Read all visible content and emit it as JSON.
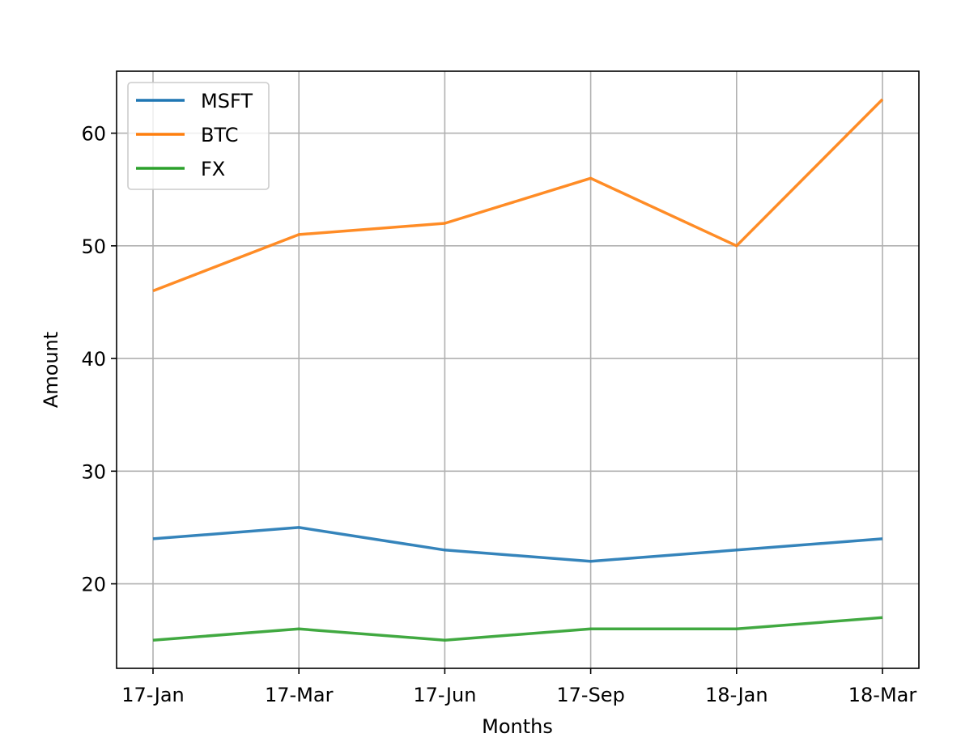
{
  "chart_data": {
    "type": "line",
    "title": "",
    "xlabel": "Months",
    "ylabel": "Amount",
    "categories": [
      "17-Jan",
      "17-Mar",
      "17-Jun",
      "17-Sep",
      "18-Jan",
      "18-Mar"
    ],
    "ylim": [
      12.5,
      65.5
    ],
    "yticks": [
      20,
      30,
      40,
      50,
      60
    ],
    "grid": true,
    "legend_position": "top-left",
    "series": [
      {
        "name": "MSFT",
        "color": "#1f77b4",
        "values": [
          24,
          25,
          23,
          22,
          23,
          24
        ]
      },
      {
        "name": "BTC",
        "color": "#ff7f0e",
        "values": [
          46,
          51,
          52,
          56,
          50,
          63
        ]
      },
      {
        "name": "FX",
        "color": "#2ca02c",
        "values": [
          15,
          16,
          15,
          16,
          16,
          17
        ]
      }
    ]
  }
}
